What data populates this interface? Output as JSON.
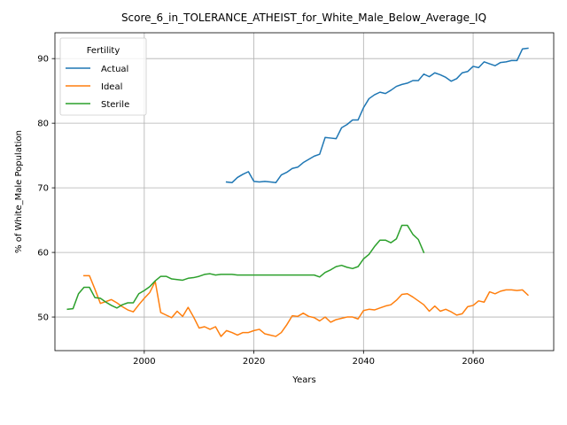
{
  "chart_data": {
    "type": "line",
    "title": "Score_6_in_TOLERANCE_ATHEIST_for_White_Male_Below_Average_IQ",
    "xlabel": "Years",
    "ylabel": "% of White_Male Population",
    "xlim": [
      1983.7,
      2074.7
    ],
    "ylim": [
      44.8,
      94.0
    ],
    "xticks": [
      2000,
      2020,
      2040,
      2060
    ],
    "xtick_labels": [
      "2000",
      "2020",
      "2040",
      "2060"
    ],
    "yticks": [
      50,
      60,
      70,
      80,
      90
    ],
    "ytick_labels": [
      "50",
      "60",
      "70",
      "80",
      "90"
    ],
    "grid": true,
    "legend": {
      "title": "Fertility",
      "position": "upper left"
    },
    "colors": {
      "Actual": "#1f77b4",
      "Ideal": "#ff7f0e",
      "Sterile": "#2ca02c"
    },
    "series": [
      {
        "name": "Actual",
        "x": [
          2015,
          2016,
          2017,
          2018,
          2019,
          2020,
          2021,
          2022,
          2023,
          2024,
          2025,
          2026,
          2027,
          2028,
          2029,
          2030,
          2031,
          2032,
          2033,
          2034,
          2035,
          2036,
          2037,
          2038,
          2039,
          2040,
          2041,
          2042,
          2043,
          2044,
          2045,
          2046,
          2047,
          2048,
          2049,
          2050,
          2051,
          2052,
          2053,
          2054,
          2055,
          2056,
          2057,
          2058,
          2059,
          2060,
          2061,
          2062,
          2063,
          2064,
          2065,
          2066,
          2067,
          2068,
          2069,
          2070
        ],
        "y": [
          70.9,
          70.8,
          71.6,
          72.1,
          72.5,
          71.0,
          70.9,
          71.0,
          70.9,
          70.8,
          72.0,
          72.4,
          73.0,
          73.2,
          73.9,
          74.4,
          74.9,
          75.2,
          77.8,
          77.7,
          77.6,
          79.3,
          79.8,
          80.5,
          80.5,
          82.4,
          83.8,
          84.4,
          84.8,
          84.6,
          85.1,
          85.7,
          86.0,
          86.2,
          86.6,
          86.6,
          87.6,
          87.2,
          87.8,
          87.5,
          87.1,
          86.5,
          86.9,
          87.8,
          88.0,
          88.8,
          88.6,
          89.5,
          89.2,
          88.9,
          89.4,
          89.5,
          89.7,
          89.7,
          91.5,
          91.6
        ]
      },
      {
        "name": "Ideal",
        "x": [
          1989,
          1990,
          1991,
          1992,
          1993,
          1994,
          1995,
          1996,
          1997,
          1998,
          1999,
          2000,
          2001,
          2002,
          2003,
          2004,
          2005,
          2006,
          2007,
          2008,
          2009,
          2010,
          2011,
          2012,
          2013,
          2014,
          2015,
          2016,
          2017,
          2018,
          2019,
          2020,
          2021,
          2022,
          2023,
          2024,
          2025,
          2026,
          2027,
          2028,
          2029,
          2030,
          2031,
          2032,
          2033,
          2034,
          2035,
          2036,
          2037,
          2038,
          2039,
          2040,
          2041,
          2042,
          2043,
          2044,
          2045,
          2046,
          2047,
          2048,
          2049,
          2050,
          2051,
          2052,
          2053,
          2054,
          2055,
          2056,
          2057,
          2058,
          2059,
          2060,
          2061,
          2062,
          2063,
          2064,
          2065,
          2066,
          2067,
          2068,
          2069,
          2070
        ],
        "y": [
          56.4,
          56.4,
          54.3,
          52.1,
          52.4,
          52.7,
          52.2,
          51.6,
          51.1,
          50.8,
          51.9,
          52.9,
          53.8,
          55.5,
          50.7,
          50.3,
          49.9,
          50.9,
          50.1,
          51.5,
          50.0,
          48.3,
          48.5,
          48.1,
          48.5,
          47.0,
          47.9,
          47.6,
          47.2,
          47.6,
          47.6,
          47.9,
          48.1,
          47.4,
          47.2,
          47.0,
          47.6,
          48.8,
          50.2,
          50.1,
          50.6,
          50.1,
          49.9,
          49.4,
          50.0,
          49.2,
          49.6,
          49.8,
          50.0,
          50.0,
          49.7,
          51.0,
          51.2,
          51.1,
          51.4,
          51.7,
          51.9,
          52.6,
          53.5,
          53.6,
          53.1,
          52.5,
          51.9,
          50.9,
          51.7,
          50.9,
          51.2,
          50.8,
          50.3,
          50.5,
          51.6,
          51.8,
          52.5,
          52.3,
          53.9,
          53.6,
          54.0,
          54.2,
          54.2,
          54.1,
          54.2,
          53.4
        ]
      },
      {
        "name": "Sterile",
        "x": [
          1986,
          1987,
          1988,
          1989,
          1990,
          1991,
          1992,
          1993,
          1994,
          1995,
          1996,
          1997,
          1998,
          1999,
          2000,
          2001,
          2002,
          2003,
          2004,
          2005,
          2006,
          2007,
          2008,
          2009,
          2010,
          2011,
          2012,
          2013,
          2014,
          2015,
          2016,
          2017,
          2018,
          2019,
          2020,
          2021,
          2022,
          2023,
          2024,
          2025,
          2026,
          2027,
          2028,
          2029,
          2030,
          2031,
          2032,
          2033,
          2034,
          2035,
          2036,
          2037,
          2038,
          2039,
          2040,
          2041,
          2042,
          2043,
          2044,
          2045,
          2046,
          2047,
          2048,
          2049,
          2050,
          2051
        ],
        "y": [
          51.2,
          51.3,
          53.6,
          54.6,
          54.6,
          53.0,
          52.9,
          52.3,
          51.8,
          51.4,
          51.9,
          52.2,
          52.2,
          53.6,
          54.1,
          54.7,
          55.6,
          56.3,
          56.3,
          55.9,
          55.8,
          55.7,
          56.0,
          56.1,
          56.3,
          56.6,
          56.7,
          56.5,
          56.6,
          56.6,
          56.6,
          56.5,
          56.5,
          56.5,
          56.5,
          56.5,
          56.5,
          56.5,
          56.5,
          56.5,
          56.5,
          56.5,
          56.5,
          56.5,
          56.5,
          56.5,
          56.2,
          56.9,
          57.3,
          57.8,
          58.0,
          57.7,
          57.5,
          57.8,
          59.0,
          59.7,
          60.9,
          61.9,
          61.9,
          61.5,
          62.1,
          64.2,
          64.2,
          62.8,
          62.0,
          60.0
        ]
      }
    ]
  }
}
